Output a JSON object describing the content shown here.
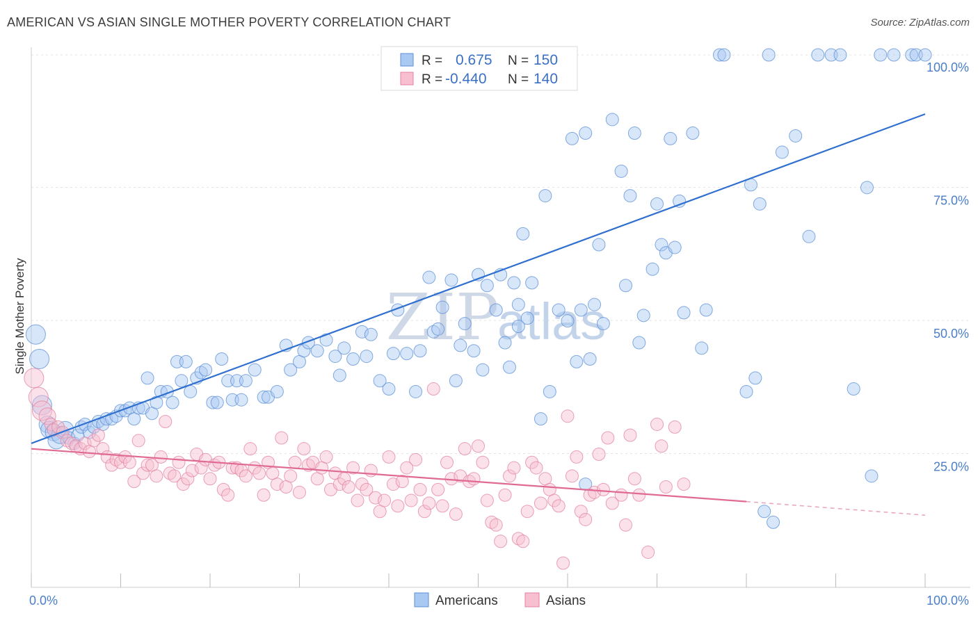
{
  "title": "AMERICAN VS ASIAN SINGLE MOTHER POVERTY CORRELATION CHART",
  "source": "Source: ZipAtlas.com",
  "watermark": {
    "part1": "ZIP",
    "part2": "atlas"
  },
  "legend": {
    "r_label": "R =",
    "n_label": "N =",
    "rows": [
      {
        "r": "0.675",
        "n": "150",
        "fill": "#a9c8f2",
        "stroke": "#5b8fd6"
      },
      {
        "r": "-0.440",
        "n": "140",
        "fill": "#f7bfd0",
        "stroke": "#e3829f"
      }
    ]
  },
  "bottom_legend": [
    {
      "label": "Americans",
      "fill": "#a9c8f2",
      "stroke": "#5b8fd6"
    },
    {
      "label": "Asians",
      "fill": "#f7bfd0",
      "stroke": "#e3829f"
    }
  ],
  "chart_data": {
    "type": "scatter",
    "title": "AMERICAN VS ASIAN SINGLE MOTHER POVERTY CORRELATION CHART",
    "xlabel": "",
    "ylabel": "Single Mother Poverty",
    "xlim": [
      0,
      100
    ],
    "ylim": [
      0,
      102
    ],
    "x_tick_labels": [
      "0.0%",
      "100.0%"
    ],
    "y_ticks": [
      25,
      50,
      75,
      100
    ],
    "y_tick_labels": [
      "25.0%",
      "50.0%",
      "75.0%",
      "100.0%"
    ],
    "grid": "horizontal dashed",
    "legend_position": "top-center",
    "series": [
      {
        "name": "Americans",
        "color": "#5b8fd6",
        "fill": "#a9c8f2",
        "r": 0.675,
        "n": 150,
        "trend": {
          "x": [
            0,
            100
          ],
          "y": [
            28.5,
            89.0
          ],
          "dashed_after": null
        },
        "points": [
          [
            0.5,
            48.5
          ],
          [
            0.9,
            44
          ],
          [
            1.2,
            35.5
          ],
          [
            1.8,
            32
          ],
          [
            2.0,
            31
          ],
          [
            2.5,
            30.5
          ],
          [
            2.8,
            29
          ],
          [
            3.2,
            30
          ],
          [
            3.8,
            31
          ],
          [
            4.2,
            29.5
          ],
          [
            4.8,
            28.5
          ],
          [
            5.2,
            30
          ],
          [
            5.6,
            31.5
          ],
          [
            6.0,
            32
          ],
          [
            6.5,
            30.5
          ],
          [
            7.0,
            31.5
          ],
          [
            7.5,
            32.5
          ],
          [
            8.0,
            32
          ],
          [
            8.4,
            33
          ],
          [
            9.0,
            33
          ],
          [
            9.5,
            33.5
          ],
          [
            10.0,
            34.5
          ],
          [
            10.5,
            34.5
          ],
          [
            11.0,
            35
          ],
          [
            11.5,
            33
          ],
          [
            12.0,
            35
          ],
          [
            12.5,
            35
          ],
          [
            13.5,
            34
          ],
          [
            14.0,
            36
          ],
          [
            13.0,
            40.5
          ],
          [
            14.5,
            38
          ],
          [
            15.2,
            38
          ],
          [
            15.8,
            36
          ],
          [
            16.3,
            43.5
          ],
          [
            16.8,
            40
          ],
          [
            17.3,
            43.5
          ],
          [
            17.8,
            38
          ],
          [
            18.5,
            40.5
          ],
          [
            19.0,
            41.5
          ],
          [
            19.5,
            42
          ],
          [
            20.3,
            36
          ],
          [
            20.8,
            36
          ],
          [
            21.3,
            44
          ],
          [
            22.0,
            40
          ],
          [
            22.5,
            36.5
          ],
          [
            23.0,
            40
          ],
          [
            23.5,
            36.5
          ],
          [
            24.0,
            40
          ],
          [
            25.0,
            42
          ],
          [
            26.0,
            37
          ],
          [
            26.5,
            37
          ],
          [
            27.5,
            38
          ],
          [
            28.5,
            46.5
          ],
          [
            29.0,
            42
          ],
          [
            30.0,
            43.5
          ],
          [
            30.5,
            45.5
          ],
          [
            31.0,
            47
          ],
          [
            32.0,
            45.5
          ],
          [
            33.0,
            47.5
          ],
          [
            34.0,
            44.5
          ],
          [
            34.5,
            41
          ],
          [
            35.0,
            46
          ],
          [
            36.0,
            44
          ],
          [
            37.0,
            49
          ],
          [
            37.5,
            44.5
          ],
          [
            38.0,
            48.5
          ],
          [
            39.0,
            40
          ],
          [
            40.0,
            38.5
          ],
          [
            40.5,
            45
          ],
          [
            41.0,
            53
          ],
          [
            42.0,
            45
          ],
          [
            43.0,
            38
          ],
          [
            43.5,
            45.5
          ],
          [
            44.5,
            59
          ],
          [
            45.0,
            49
          ],
          [
            45.5,
            49.5
          ],
          [
            46.0,
            53.5
          ],
          [
            47.0,
            58.5
          ],
          [
            47.5,
            40
          ],
          [
            48.0,
            46.5
          ],
          [
            48.5,
            50.5
          ],
          [
            49.5,
            45.5
          ],
          [
            50.0,
            59.5
          ],
          [
            50.5,
            42
          ],
          [
            51.0,
            57.5
          ],
          [
            52.0,
            53
          ],
          [
            52.5,
            59.5
          ],
          [
            53.0,
            47
          ],
          [
            53.5,
            42.5
          ],
          [
            54.0,
            58
          ],
          [
            54.5,
            54
          ],
          [
            55.0,
            67
          ],
          [
            55.5,
            51.5
          ],
          [
            56.0,
            58
          ],
          [
            57.0,
            33
          ],
          [
            57.5,
            74
          ],
          [
            58.0,
            38
          ],
          [
            59.0,
            53
          ],
          [
            60.0,
            51
          ],
          [
            60.5,
            84.5
          ],
          [
            61.0,
            43.5
          ],
          [
            61.5,
            53
          ],
          [
            62.0,
            85.5
          ],
          [
            62.5,
            44
          ],
          [
            63.0,
            54
          ],
          [
            63.5,
            65
          ],
          [
            64.0,
            50.5
          ],
          [
            65.0,
            88
          ],
          [
            66.0,
            78.5
          ],
          [
            66.5,
            57.5
          ],
          [
            67.0,
            74
          ],
          [
            67.5,
            85.5
          ],
          [
            68.0,
            47
          ],
          [
            68.5,
            52
          ],
          [
            69.5,
            60.5
          ],
          [
            70.0,
            72.5
          ],
          [
            70.5,
            65
          ],
          [
            71.0,
            63.5
          ],
          [
            71.5,
            84.5
          ],
          [
            72.0,
            64.5
          ],
          [
            72.5,
            73
          ],
          [
            73.0,
            52.5
          ],
          [
            74.0,
            85.5
          ],
          [
            75.0,
            46
          ],
          [
            75.5,
            53
          ],
          [
            77.0,
            100
          ],
          [
            77.5,
            100
          ],
          [
            80.0,
            38
          ],
          [
            80.5,
            76
          ],
          [
            81.0,
            40.5
          ],
          [
            81.5,
            72.5
          ],
          [
            82.5,
            100
          ],
          [
            82.0,
            16
          ],
          [
            83.0,
            14
          ],
          [
            84.0,
            82
          ],
          [
            85.5,
            85
          ],
          [
            87.0,
            66.5
          ],
          [
            88.0,
            100
          ],
          [
            89.5,
            100
          ],
          [
            90.5,
            100
          ],
          [
            92.0,
            38.5
          ],
          [
            93.5,
            75.5
          ],
          [
            94.0,
            22.5
          ],
          [
            95.0,
            100
          ],
          [
            96.5,
            100
          ],
          [
            98.5,
            100
          ],
          [
            99.0,
            100
          ],
          [
            100,
            100
          ],
          [
            54.5,
            50
          ],
          [
            62.0,
            21
          ]
        ]
      },
      {
        "name": "Asians",
        "color": "#e3829f",
        "fill": "#f7bfd0",
        "r": -0.44,
        "n": 140,
        "trend": {
          "x": [
            0,
            80,
            100
          ],
          "y": [
            27.5,
            17.8,
            15.3
          ],
          "dashed_after": 80
        },
        "points": [
          [
            0.3,
            40.5
          ],
          [
            0.8,
            37
          ],
          [
            1.2,
            34.5
          ],
          [
            1.8,
            33.5
          ],
          [
            2.2,
            32
          ],
          [
            2.5,
            31
          ],
          [
            3.0,
            31.5
          ],
          [
            3.5,
            30.5
          ],
          [
            4.0,
            29
          ],
          [
            4.5,
            28.5
          ],
          [
            5.0,
            28
          ],
          [
            5.5,
            27.5
          ],
          [
            6.0,
            28.5
          ],
          [
            6.5,
            27
          ],
          [
            7.0,
            29
          ],
          [
            7.5,
            30
          ],
          [
            8.0,
            27.5
          ],
          [
            8.5,
            26
          ],
          [
            9.0,
            24.5
          ],
          [
            9.5,
            25.5
          ],
          [
            10.0,
            25
          ],
          [
            10.5,
            26
          ],
          [
            11.0,
            25
          ],
          [
            11.5,
            21.5
          ],
          [
            12.0,
            29
          ],
          [
            12.5,
            23
          ],
          [
            13.0,
            24.5
          ],
          [
            13.5,
            24.5
          ],
          [
            14.0,
            22.5
          ],
          [
            14.5,
            26
          ],
          [
            15.0,
            32.5
          ],
          [
            15.5,
            23
          ],
          [
            16.0,
            22.5
          ],
          [
            16.5,
            25
          ],
          [
            17.0,
            21
          ],
          [
            17.5,
            22
          ],
          [
            18.0,
            23.5
          ],
          [
            18.5,
            26.5
          ],
          [
            19.0,
            24
          ],
          [
            19.5,
            25.5
          ],
          [
            20.0,
            22
          ],
          [
            20.5,
            24.5
          ],
          [
            21.0,
            25
          ],
          [
            21.5,
            20
          ],
          [
            22.0,
            19
          ],
          [
            22.5,
            24
          ],
          [
            23.0,
            24
          ],
          [
            23.5,
            23.5
          ],
          [
            24.0,
            22.5
          ],
          [
            24.5,
            27.5
          ],
          [
            25.0,
            24
          ],
          [
            25.5,
            23
          ],
          [
            26.0,
            19
          ],
          [
            26.5,
            25
          ],
          [
            27.0,
            23
          ],
          [
            27.5,
            21
          ],
          [
            28.0,
            29.5
          ],
          [
            28.5,
            20.5
          ],
          [
            29.0,
            22.5
          ],
          [
            29.5,
            25
          ],
          [
            30.0,
            19.5
          ],
          [
            30.5,
            27.5
          ],
          [
            31.0,
            24.5
          ],
          [
            31.5,
            25
          ],
          [
            32.0,
            22
          ],
          [
            32.5,
            24
          ],
          [
            33.0,
            26
          ],
          [
            33.5,
            20
          ],
          [
            34.0,
            23
          ],
          [
            34.5,
            21
          ],
          [
            35.0,
            22
          ],
          [
            35.5,
            20.5
          ],
          [
            36.0,
            24
          ],
          [
            36.5,
            18
          ],
          [
            37.0,
            21
          ],
          [
            37.5,
            20
          ],
          [
            38.0,
            23.5
          ],
          [
            38.5,
            18.5
          ],
          [
            39.0,
            16
          ],
          [
            39.5,
            18
          ],
          [
            40.0,
            26
          ],
          [
            40.5,
            21
          ],
          [
            41.0,
            17
          ],
          [
            41.5,
            21.5
          ],
          [
            42.0,
            24
          ],
          [
            42.5,
            18
          ],
          [
            43.0,
            25.5
          ],
          [
            43.5,
            20
          ],
          [
            44.0,
            16
          ],
          [
            44.5,
            17.5
          ],
          [
            45.0,
            38.5
          ],
          [
            45.5,
            20
          ],
          [
            46.0,
            17
          ],
          [
            46.5,
            25
          ],
          [
            47.0,
            22
          ],
          [
            47.5,
            15.5
          ],
          [
            48.0,
            22.5
          ],
          [
            48.5,
            27.5
          ],
          [
            49.0,
            21.5
          ],
          [
            49.5,
            22
          ],
          [
            50.0,
            28
          ],
          [
            50.5,
            25
          ],
          [
            51.0,
            18
          ],
          [
            51.5,
            14
          ],
          [
            52.0,
            13.5
          ],
          [
            52.5,
            10.5
          ],
          [
            53.0,
            19
          ],
          [
            53.5,
            22.5
          ],
          [
            54.0,
            24
          ],
          [
            54.5,
            11
          ],
          [
            55.0,
            10.5
          ],
          [
            55.5,
            16
          ],
          [
            56.0,
            25
          ],
          [
            56.5,
            24
          ],
          [
            57.0,
            17.5
          ],
          [
            57.5,
            22
          ],
          [
            58.0,
            20
          ],
          [
            58.5,
            18
          ],
          [
            59.0,
            17
          ],
          [
            59.5,
            6.5
          ],
          [
            60.0,
            33.5
          ],
          [
            60.5,
            22.5
          ],
          [
            61.0,
            26
          ],
          [
            61.5,
            16
          ],
          [
            62.0,
            14.5
          ],
          [
            62.5,
            19
          ],
          [
            63.0,
            19.5
          ],
          [
            63.5,
            26.5
          ],
          [
            64.0,
            20
          ],
          [
            64.5,
            29.5
          ],
          [
            65.0,
            17.5
          ],
          [
            66.0,
            19
          ],
          [
            66.5,
            13.5
          ],
          [
            67.0,
            30
          ],
          [
            67.5,
            22
          ],
          [
            68.0,
            19
          ],
          [
            69.0,
            8.5
          ],
          [
            70.0,
            32
          ],
          [
            70.5,
            28
          ],
          [
            71.0,
            20.5
          ],
          [
            72.0,
            31.5
          ],
          [
            73.0,
            21
          ]
        ]
      }
    ]
  }
}
